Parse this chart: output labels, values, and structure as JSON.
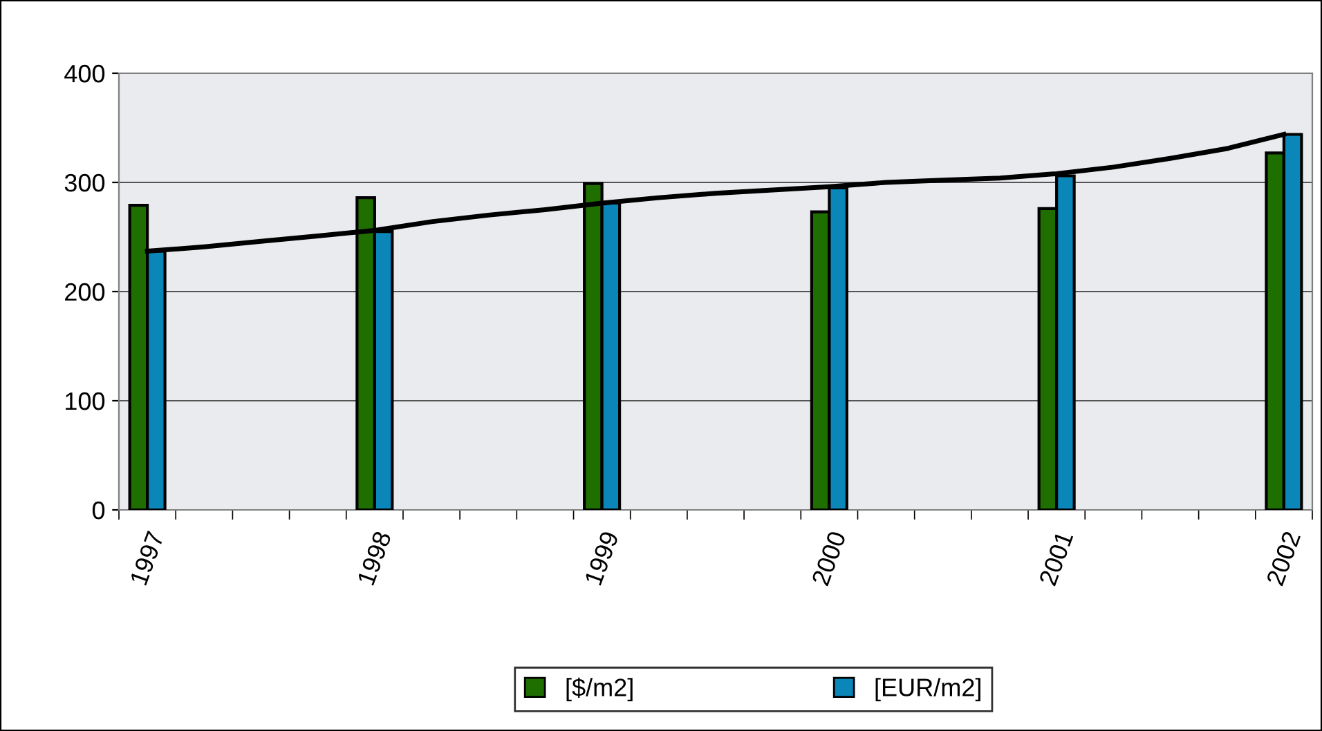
{
  "chart_data": {
    "type": "bar",
    "categories": [
      "1997",
      null,
      null,
      null,
      "1998",
      null,
      null,
      null,
      "1999",
      null,
      null,
      null,
      "2000",
      null,
      null,
      null,
      "2001",
      null,
      null,
      null,
      "2002"
    ],
    "series": [
      {
        "name": "[$/m2]",
        "color": "#1f6e00",
        "values": [
          279,
          null,
          null,
          null,
          286,
          null,
          null,
          null,
          299,
          null,
          null,
          null,
          273,
          null,
          null,
          null,
          276,
          null,
          null,
          null,
          327
        ]
      },
      {
        "name": "[EUR/m2]",
        "color": "#0a86b8",
        "values": [
          237,
          null,
          null,
          null,
          255,
          null,
          null,
          null,
          281,
          null,
          null,
          null,
          295,
          null,
          null,
          null,
          306,
          null,
          null,
          null,
          344
        ]
      },
      {
        "type": "line",
        "color": "#000000",
        "values": [
          237,
          241,
          246,
          251,
          256,
          264,
          270,
          275,
          281,
          286,
          290,
          293,
          296,
          300,
          302,
          304,
          308,
          314,
          322,
          331,
          344
        ]
      }
    ],
    "ylim": [
      0,
      400
    ],
    "yticks": [
      0,
      100,
      200,
      300,
      400
    ],
    "grid": "y",
    "legend": "bottom"
  }
}
